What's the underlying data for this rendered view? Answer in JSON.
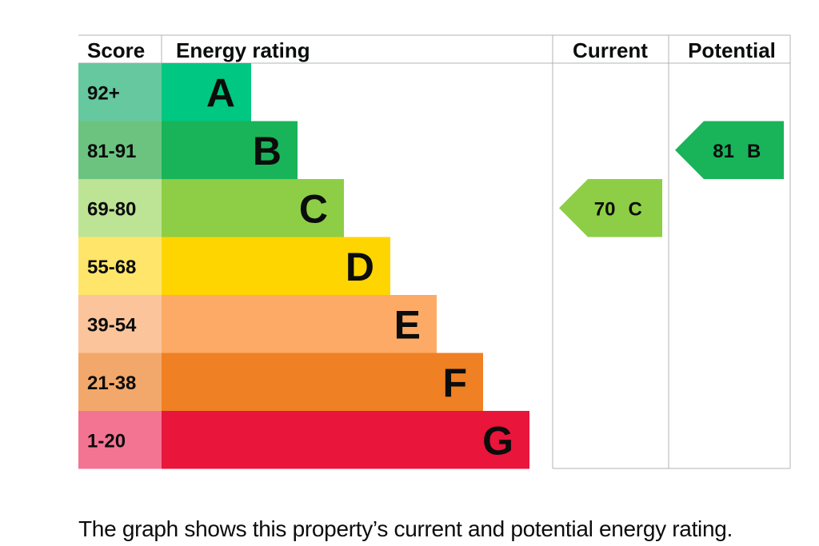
{
  "chart_data": {
    "type": "bar",
    "headers": {
      "score": "Score",
      "energy_rating": "Energy rating",
      "current": "Current",
      "potential": "Potential"
    },
    "bands": [
      {
        "letter": "A",
        "range": "92+",
        "color": "#008054",
        "score_color": "#00c781"
      },
      {
        "letter": "B",
        "range": "81-91",
        "color": "#19b459",
        "score_color": "#19b459"
      },
      {
        "letter": "C",
        "range": "69-80",
        "color": "#8dce46",
        "score_color": "#8dce46"
      },
      {
        "letter": "D",
        "range": "55-68",
        "color": "#ffd500",
        "score_color": "#ffd500"
      },
      {
        "letter": "E",
        "range": "39-54",
        "color": "#fcaa65",
        "score_color": "#fcaa65"
      },
      {
        "letter": "F",
        "range": "21-38",
        "color": "#ef8023",
        "score_color": "#ef8023"
      },
      {
        "letter": "G",
        "range": "1-20",
        "color": "#e9153b",
        "score_color": "#e9153b"
      }
    ],
    "current": {
      "value": 70,
      "letter": "C",
      "color": "#8dce46"
    },
    "potential": {
      "value": 81,
      "letter": "B",
      "color": "#19b459"
    }
  },
  "caption": "The graph shows this property’s current and potential energy rating."
}
